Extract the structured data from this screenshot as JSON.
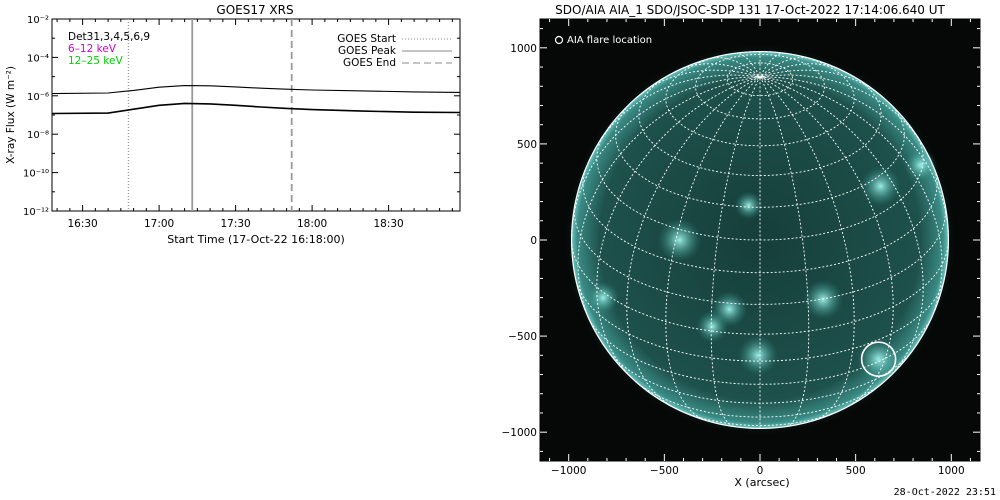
{
  "chart_data": [
    {
      "type": "line",
      "title": "GOES17 XRS",
      "xlabel": "Start Time (17-Oct-22 16:18:00)",
      "ylabel": "X-ray Flux (W m⁻²)",
      "y_scale": "log",
      "ylim": [
        1e-12,
        0.01
      ],
      "xlim": [
        "16:18",
        "18:58"
      ],
      "x_ticks": [
        "16:30",
        "17:00",
        "17:30",
        "18:00",
        "18:30"
      ],
      "y_ticks": [
        "10⁻¹²",
        "10⁻¹⁰",
        "10⁻⁸",
        "10⁻⁶",
        "10⁻⁴",
        "10⁻²"
      ],
      "detectors": "Det31,3,4,5,6,9",
      "series": [
        {
          "name": "6–12 keV",
          "color": "#000000",
          "x": [
            "16:18",
            "16:40",
            "16:50",
            "17:00",
            "17:10",
            "17:20",
            "17:30",
            "17:40",
            "17:50",
            "18:00",
            "18:20",
            "18:40",
            "18:58"
          ],
          "values": [
            1.3e-06,
            1.4e-06,
            1.9e-06,
            2.8e-06,
            3.4e-06,
            3.3e-06,
            2.9e-06,
            2.5e-06,
            2.2e-06,
            2e-06,
            1.8e-06,
            1.6e-06,
            1.5e-06
          ]
        },
        {
          "name": "12–25 keV",
          "color": "#000000",
          "x": [
            "16:18",
            "16:40",
            "16:50",
            "17:00",
            "17:10",
            "17:20",
            "17:30",
            "17:40",
            "17:50",
            "18:00",
            "18:20",
            "18:40",
            "18:58"
          ],
          "values": [
            1.2e-07,
            1.25e-07,
            2e-07,
            3.2e-07,
            4e-07,
            3.8e-07,
            3.2e-07,
            2.6e-07,
            2.2e-07,
            1.9e-07,
            1.6e-07,
            1.4e-07,
            1.35e-07
          ]
        }
      ],
      "markers": [
        {
          "name": "GOES Start",
          "x": "16:48",
          "style": "dotted"
        },
        {
          "name": "GOES Peak",
          "x": "17:13",
          "style": "solid"
        },
        {
          "name": "GOES End",
          "x": "17:52",
          "style": "dashed"
        }
      ],
      "legend_placement": "top-right",
      "band_label_colors": {
        "6–12 keV": "#d200d2",
        "12–25 keV": "#00d400"
      }
    },
    {
      "type": "image",
      "title": "SDO/AIA AIA_1 SDO/JSOC-SDP 131 17-Oct-2022 17:14:06.640 UT",
      "xlabel": "X (arcsec)",
      "xlim": [
        -1150,
        1150
      ],
      "ylim": [
        -1150,
        1150
      ],
      "x_ticks": [
        "−1000",
        "−500",
        "0",
        "500",
        "1000"
      ],
      "y_ticks": [
        "1000",
        "500",
        "0",
        "−500",
        "−1000"
      ],
      "annotation": "AIA flare location",
      "flare_location": {
        "x": 620,
        "y": -620
      },
      "solar_radius_arcsec": 985,
      "disk_color": "#1c4a46",
      "grid": true
    }
  ],
  "footer": {
    "timestamp": "28-Oct-2022 23:51"
  }
}
